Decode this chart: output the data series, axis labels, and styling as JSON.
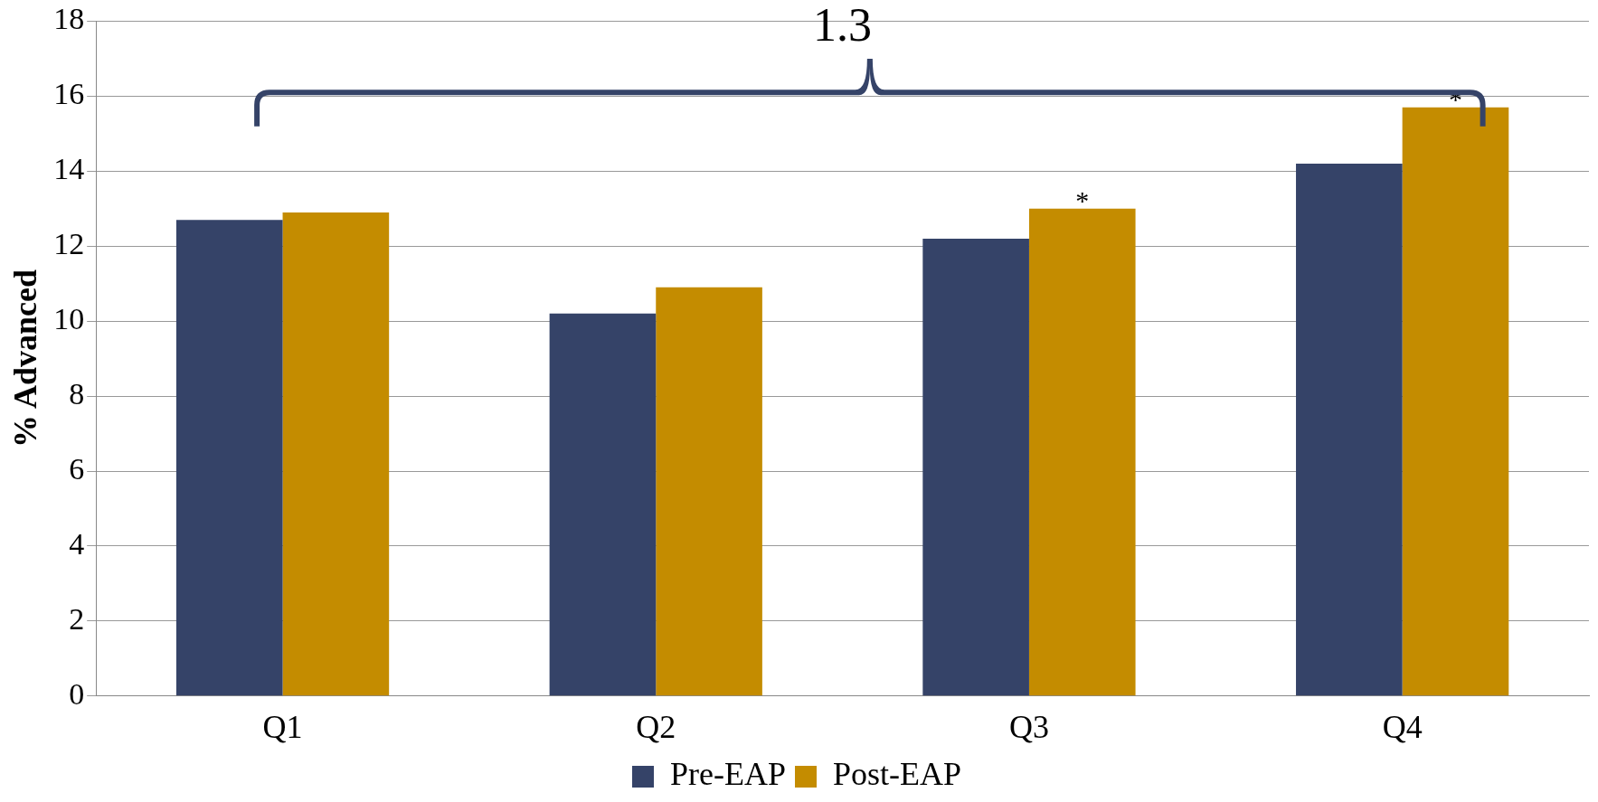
{
  "chart_data": {
    "type": "bar",
    "ylabel": "% Advanced",
    "categories": [
      "Q1",
      "Q2",
      "Q3",
      "Q4"
    ],
    "series": [
      {
        "name": "Pre-EAP",
        "color": "#354368",
        "values": [
          12.7,
          10.2,
          12.2,
          14.2
        ]
      },
      {
        "name": "Post-EAP",
        "color": "#c48c00",
        "values": [
          12.9,
          10.9,
          13.0,
          15.7
        ]
      }
    ],
    "ylim": [
      0,
      18
    ],
    "yticks": [
      0,
      2,
      4,
      6,
      8,
      10,
      12,
      14,
      16,
      18
    ],
    "grid": "y",
    "legend": "bottom",
    "annotations": [
      "1.3",
      {
        "text": "*",
        "x": "Q3",
        "y": 13.0
      },
      {
        "text": "*",
        "x": "Q4",
        "y": 15.7
      }
    ]
  }
}
